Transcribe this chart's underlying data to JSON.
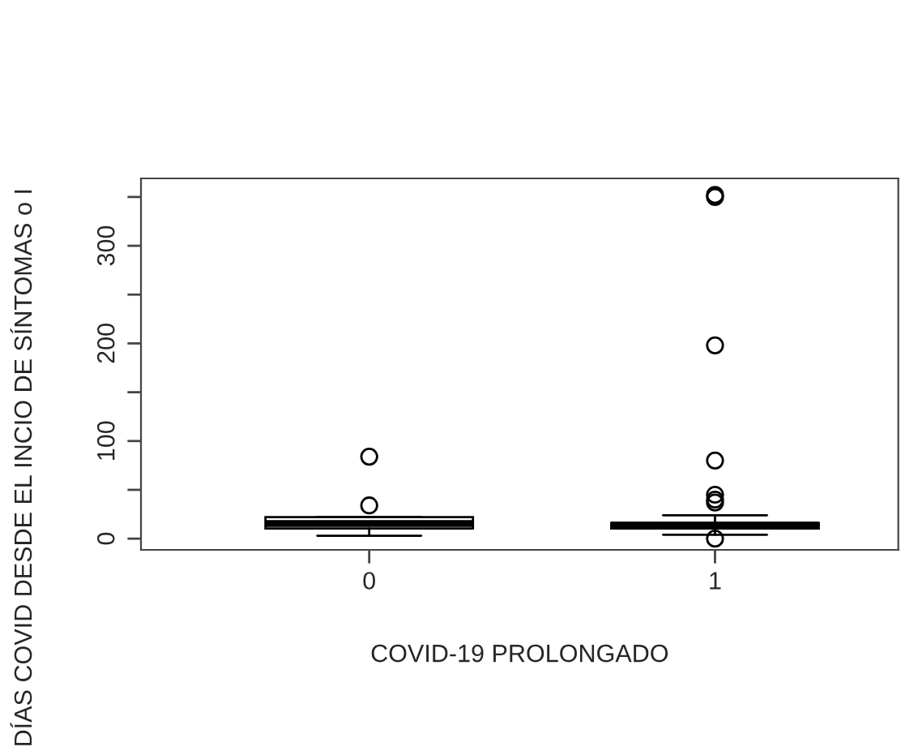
{
  "chart_data": {
    "type": "box",
    "xlabel": "COVID-19 PROLONGADO",
    "ylabel": "DÍAS COVID DESDE EL INCIO DE SÍNTOMAS o I",
    "categories": [
      "0",
      "1"
    ],
    "boxes": [
      {
        "low": 3,
        "q1": 10.5,
        "median": 15.5,
        "q3": 22,
        "high": 22,
        "outliers": [
          34,
          84
        ]
      },
      {
        "low": 4,
        "q1": 10.5,
        "median": 14,
        "q3": 16,
        "high": 24,
        "outliers": [
          0,
          37,
          40,
          45,
          80,
          198,
          350,
          352
        ]
      }
    ],
    "ylim": [
      -11.5,
      369
    ],
    "yticks": [
      0,
      100,
      200,
      300,
      {
        "value": 50,
        "label": null
      },
      {
        "value": 150,
        "label": null
      },
      {
        "value": 250,
        "label": null
      },
      {
        "value": 350,
        "label": null
      }
    ],
    "grid": false
  }
}
